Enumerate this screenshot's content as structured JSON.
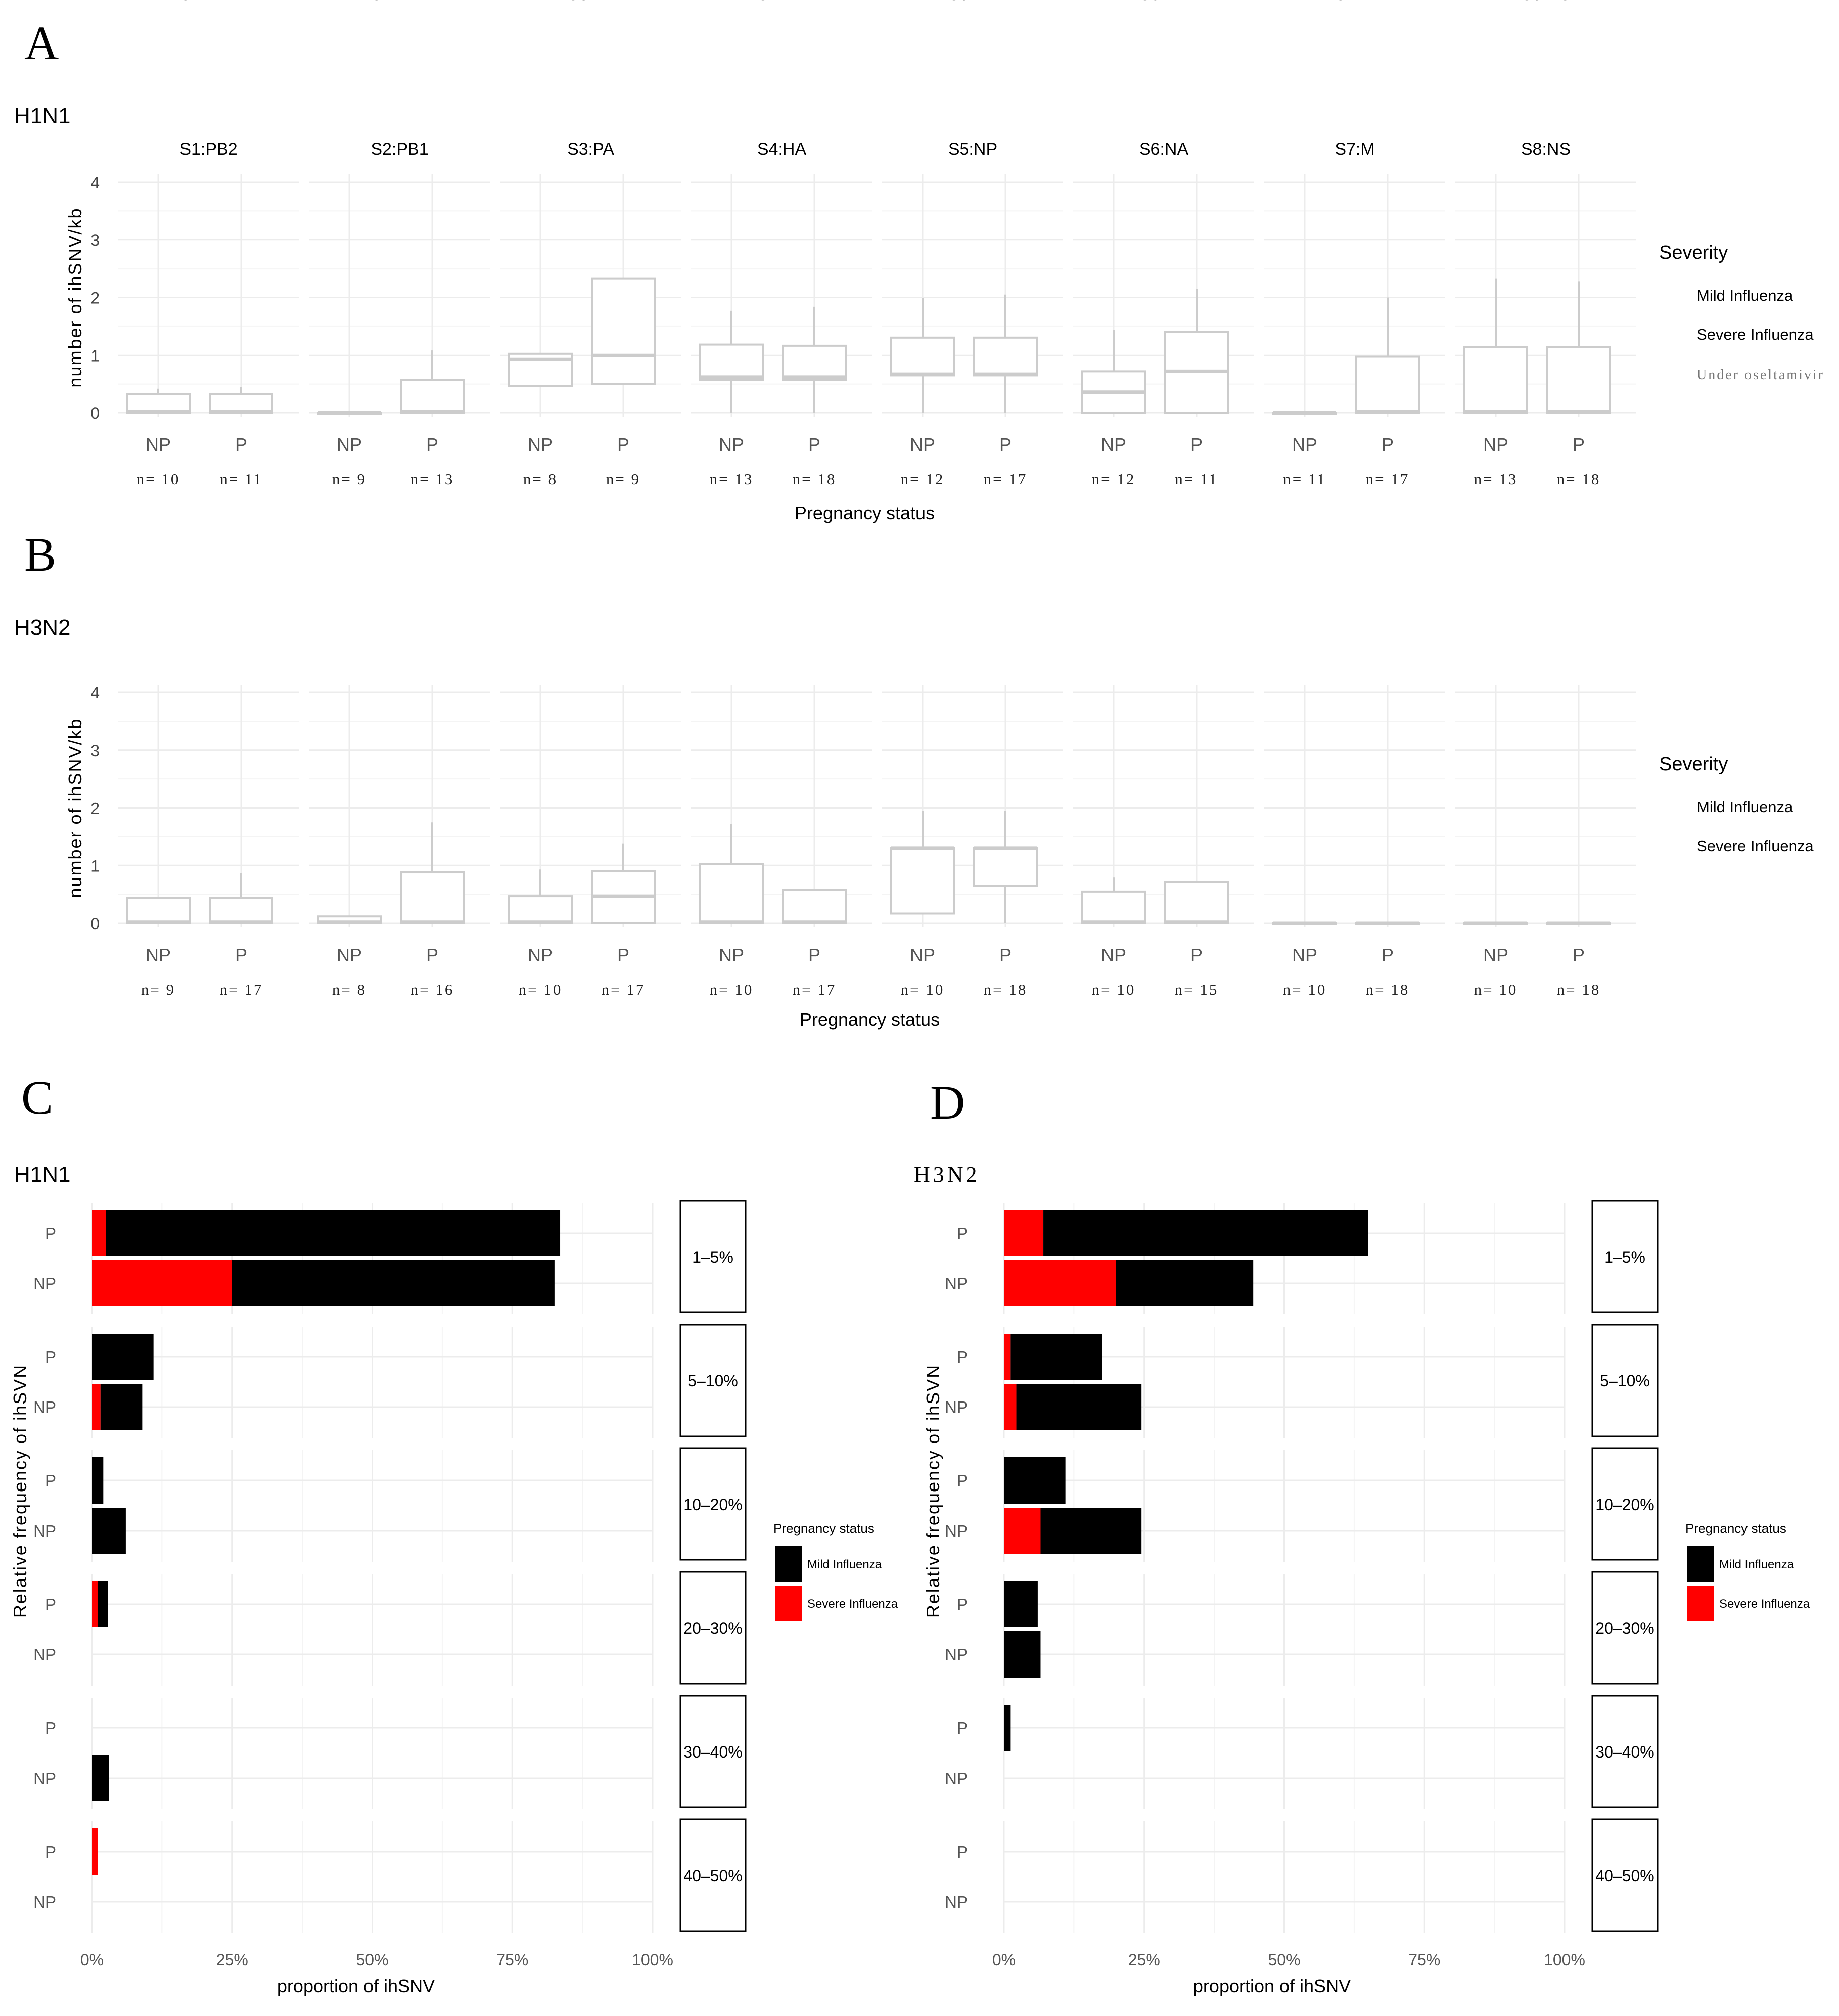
{
  "panel_labels": {
    "a": "A",
    "b": "B",
    "c": "C",
    "d": "D"
  },
  "colors": {
    "mild": "#000000",
    "severe": "#ff0000",
    "box": "#cccccc",
    "grid": "#ececec"
  },
  "chart_data": [
    {
      "type": "boxplot",
      "panel": "A",
      "title": "H1N1",
      "ylabel": "number of ihSNV/kb",
      "xlabel": "Pregnancy status",
      "ylim": [
        0,
        4
      ],
      "yticks": [
        "0",
        "1",
        "2",
        "3",
        "4"
      ],
      "categories": [
        "NP",
        "P"
      ],
      "legend": {
        "title": "Severity",
        "items": [
          "Mild Influenza",
          "Severe Influenza",
          "Under oseltamivir"
        ]
      },
      "facets": [
        {
          "label": "S1:PB2",
          "groups": [
            {
              "cat": "NP",
              "n": "n= 10",
              "min": 0,
              "q1": 0,
              "med": 0.02,
              "q3": 0.33,
              "max": 0.42
            },
            {
              "cat": "P",
              "n": "n= 11",
              "min": 0,
              "q1": 0,
              "med": 0.02,
              "q3": 0.33,
              "max": 0.45
            }
          ]
        },
        {
          "label": "S2:PB1",
          "groups": [
            {
              "cat": "NP",
              "n": "n= 9",
              "min": 0,
              "q1": 0,
              "med": 0,
              "q3": 0,
              "max": 0
            },
            {
              "cat": "P",
              "n": "n= 13",
              "min": 0,
              "q1": 0,
              "med": 0.02,
              "q3": 0.57,
              "max": 1.08
            }
          ]
        },
        {
          "label": "S3:PA",
          "groups": [
            {
              "cat": "NP",
              "n": "n= 8",
              "min": 0.47,
              "q1": 0.47,
              "med": 0.93,
              "q3": 1.03,
              "max": 1.03
            },
            {
              "cat": "P",
              "n": "n= 9",
              "min": 0.5,
              "q1": 0.5,
              "med": 1.0,
              "q3": 2.33,
              "max": 2.33
            }
          ]
        },
        {
          "label": "S4:HA",
          "groups": [
            {
              "cat": "NP",
              "n": "n= 13",
              "min": 0,
              "q1": 0.57,
              "med": 0.62,
              "q3": 1.18,
              "max": 1.77
            },
            {
              "cat": "P",
              "n": "n= 18",
              "min": 0,
              "q1": 0.57,
              "med": 0.62,
              "q3": 1.16,
              "max": 1.84
            }
          ]
        },
        {
          "label": "S5:NP",
          "groups": [
            {
              "cat": "NP",
              "n": "n= 12",
              "min": 0,
              "q1": 0.65,
              "med": 0.67,
              "q3": 1.3,
              "max": 1.99
            },
            {
              "cat": "P",
              "n": "n= 17",
              "min": 0,
              "q1": 0.65,
              "med": 0.67,
              "q3": 1.3,
              "max": 2.05
            }
          ]
        },
        {
          "label": "S6:NA",
          "groups": [
            {
              "cat": "NP",
              "n": "n= 12",
              "min": 0,
              "q1": 0,
              "med": 0.36,
              "q3": 0.72,
              "max": 1.43
            },
            {
              "cat": "P",
              "n": "n= 11",
              "min": 0,
              "q1": 0,
              "med": 0.72,
              "q3": 1.4,
              "max": 2.15
            }
          ]
        },
        {
          "label": "S7:M",
          "groups": [
            {
              "cat": "NP",
              "n": "n= 11",
              "min": 0,
              "q1": 0,
              "med": 0,
              "q3": 0,
              "max": 0
            },
            {
              "cat": "P",
              "n": "n= 17",
              "min": 0,
              "q1": 0,
              "med": 0.02,
              "q3": 0.98,
              "max": 2.0
            }
          ]
        },
        {
          "label": "S8:NS",
          "groups": [
            {
              "cat": "NP",
              "n": "n= 13",
              "min": 0,
              "q1": 0,
              "med": 0.02,
              "q3": 1.14,
              "max": 2.33
            },
            {
              "cat": "P",
              "n": "n= 18",
              "min": 0,
              "q1": 0,
              "med": 0.02,
              "q3": 1.14,
              "max": 2.28
            }
          ]
        }
      ]
    },
    {
      "type": "boxplot",
      "panel": "B",
      "title": "H3N2",
      "ylabel": "number of ihSNV/kb",
      "xlabel": "Pregnancy status",
      "ylim": [
        0,
        4
      ],
      "yticks": [
        "0",
        "1",
        "2",
        "3",
        "4"
      ],
      "categories": [
        "NP",
        "P"
      ],
      "legend": {
        "title": "Severity",
        "items": [
          "Mild Influenza",
          "Severe Influenza"
        ]
      },
      "facets": [
        {
          "label": "S1:PB2",
          "groups": [
            {
              "cat": "NP",
              "n": "n= 9",
              "min": 0,
              "q1": 0,
              "med": 0.02,
              "q3": 0.44,
              "max": 0.44
            },
            {
              "cat": "P",
              "n": "n= 17",
              "min": 0,
              "q1": 0,
              "med": 0.02,
              "q3": 0.44,
              "max": 0.87
            }
          ]
        },
        {
          "label": "S2:PB1",
          "groups": [
            {
              "cat": "NP",
              "n": "n= 8",
              "min": 0,
              "q1": 0,
              "med": 0.02,
              "q3": 0.12,
              "max": 0.12
            },
            {
              "cat": "P",
              "n": "n= 16",
              "min": 0,
              "q1": 0,
              "med": 0.02,
              "q3": 0.88,
              "max": 1.75
            }
          ]
        },
        {
          "label": "S3:PA",
          "groups": [
            {
              "cat": "NP",
              "n": "n= 10",
              "min": 0,
              "q1": 0,
              "med": 0.02,
              "q3": 0.47,
              "max": 0.93
            },
            {
              "cat": "P",
              "n": "n= 17",
              "min": 0,
              "q1": 0,
              "med": 0.47,
              "q3": 0.9,
              "max": 1.38
            }
          ]
        },
        {
          "label": "S4:HA",
          "groups": [
            {
              "cat": "NP",
              "n": "n= 10",
              "min": 0,
              "q1": 0,
              "med": 0.02,
              "q3": 1.02,
              "max": 1.72
            },
            {
              "cat": "P",
              "n": "n= 17",
              "min": 0,
              "q1": 0,
              "med": 0.02,
              "q3": 0.58,
              "max": 0.58
            }
          ]
        },
        {
          "label": "S5:NP",
          "groups": [
            {
              "cat": "NP",
              "n": "n= 10",
              "min": 0.17,
              "q1": 0.17,
              "med": 1.3,
              "q3": 1.3,
              "max": 1.95
            },
            {
              "cat": "P",
              "n": "n= 18",
              "min": 0,
              "q1": 0.65,
              "med": 1.3,
              "q3": 1.3,
              "max": 1.95
            }
          ]
        },
        {
          "label": "S6:NA",
          "groups": [
            {
              "cat": "NP",
              "n": "n= 10",
              "min": 0,
              "q1": 0,
              "med": 0.02,
              "q3": 0.55,
              "max": 0.8
            },
            {
              "cat": "P",
              "n": "n= 15",
              "min": 0,
              "q1": 0,
              "med": 0.02,
              "q3": 0.72,
              "max": 0.72
            }
          ]
        },
        {
          "label": "S7:M",
          "groups": [
            {
              "cat": "NP",
              "n": "n= 10",
              "min": 0,
              "q1": 0,
              "med": 0,
              "q3": 0,
              "max": 0
            },
            {
              "cat": "P",
              "n": "n= 18",
              "min": 0,
              "q1": 0,
              "med": 0,
              "q3": 0,
              "max": 0
            }
          ]
        },
        {
          "label": "S8:NS",
          "groups": [
            {
              "cat": "NP",
              "n": "n= 10",
              "min": 0,
              "q1": 0,
              "med": 0,
              "q3": 0,
              "max": 0
            },
            {
              "cat": "P",
              "n": "n= 18",
              "min": 0,
              "q1": 0,
              "med": 0,
              "q3": 0,
              "max": 0
            }
          ]
        }
      ]
    },
    {
      "type": "bar",
      "stacked": true,
      "orientation": "horizontal",
      "panel": "C",
      "title": "H1N1",
      "xlabel": "proportion of ihSNV",
      "ylabel": "Relative frequency of ihSVN",
      "xlim": [
        0,
        1.0
      ],
      "xticks": [
        "0%",
        "25%",
        "50%",
        "75%",
        "100%"
      ],
      "categories": [
        "P",
        "NP"
      ],
      "legend": {
        "title": "Pregnancy status",
        "items": [
          "Mild Influenza",
          "Severe Influenza"
        ]
      },
      "facets": [
        {
          "label": "1–5%",
          "rows": [
            {
              "cat": "P",
              "severe": 0.025,
              "mild": 0.81
            },
            {
              "cat": "NP",
              "severe": 0.25,
              "mild": 0.575
            }
          ]
        },
        {
          "label": "5–10%",
          "rows": [
            {
              "cat": "P",
              "severe": 0,
              "mild": 0.11
            },
            {
              "cat": "NP",
              "severe": 0.015,
              "mild": 0.075
            }
          ]
        },
        {
          "label": "10–20%",
          "rows": [
            {
              "cat": "P",
              "severe": 0,
              "mild": 0.02
            },
            {
              "cat": "NP",
              "severe": 0,
              "mild": 0.06
            }
          ]
        },
        {
          "label": "20–30%",
          "rows": [
            {
              "cat": "P",
              "severe": 0.01,
              "mild": 0.018
            },
            {
              "cat": "NP",
              "severe": 0,
              "mild": 0
            }
          ]
        },
        {
          "label": "30–40%",
          "rows": [
            {
              "cat": "P",
              "severe": 0,
              "mild": 0
            },
            {
              "cat": "NP",
              "severe": 0,
              "mild": 0.03
            }
          ]
        },
        {
          "label": "40–50%",
          "rows": [
            {
              "cat": "P",
              "severe": 0.01,
              "mild": 0
            },
            {
              "cat": "NP",
              "severe": 0,
              "mild": 0
            }
          ]
        }
      ]
    },
    {
      "type": "bar",
      "stacked": true,
      "orientation": "horizontal",
      "panel": "D",
      "title": "H3N2",
      "xlabel": "proportion of ihSNV",
      "ylabel": "Relative frequency of ihSVN",
      "xlim": [
        0,
        1.0
      ],
      "xticks": [
        "0%",
        "25%",
        "50%",
        "75%",
        "100%"
      ],
      "categories": [
        "P",
        "NP"
      ],
      "legend": {
        "title": "Pregnancy status",
        "items": [
          "Mild Influenza",
          "Severe Influenza"
        ]
      },
      "facets": [
        {
          "label": "1–5%",
          "rows": [
            {
              "cat": "P",
              "severe": 0.07,
              "mild": 0.58
            },
            {
              "cat": "NP",
              "severe": 0.2,
              "mild": 0.245
            }
          ]
        },
        {
          "label": "5–10%",
          "rows": [
            {
              "cat": "P",
              "severe": 0.012,
              "mild": 0.163
            },
            {
              "cat": "NP",
              "severe": 0.022,
              "mild": 0.223
            }
          ]
        },
        {
          "label": "10–20%",
          "rows": [
            {
              "cat": "P",
              "severe": 0,
              "mild": 0.11
            },
            {
              "cat": "NP",
              "severe": 0.065,
              "mild": 0.18
            }
          ]
        },
        {
          "label": "20–30%",
          "rows": [
            {
              "cat": "P",
              "severe": 0,
              "mild": 0.06
            },
            {
              "cat": "NP",
              "severe": 0,
              "mild": 0.065
            }
          ]
        },
        {
          "label": "30–40%",
          "rows": [
            {
              "cat": "P",
              "severe": 0,
              "mild": 0.012
            },
            {
              "cat": "NP",
              "severe": 0,
              "mild": 0
            }
          ]
        },
        {
          "label": "40–50%",
          "rows": [
            {
              "cat": "P",
              "severe": 0,
              "mild": 0
            },
            {
              "cat": "NP",
              "severe": 0,
              "mild": 0
            }
          ]
        }
      ]
    }
  ]
}
